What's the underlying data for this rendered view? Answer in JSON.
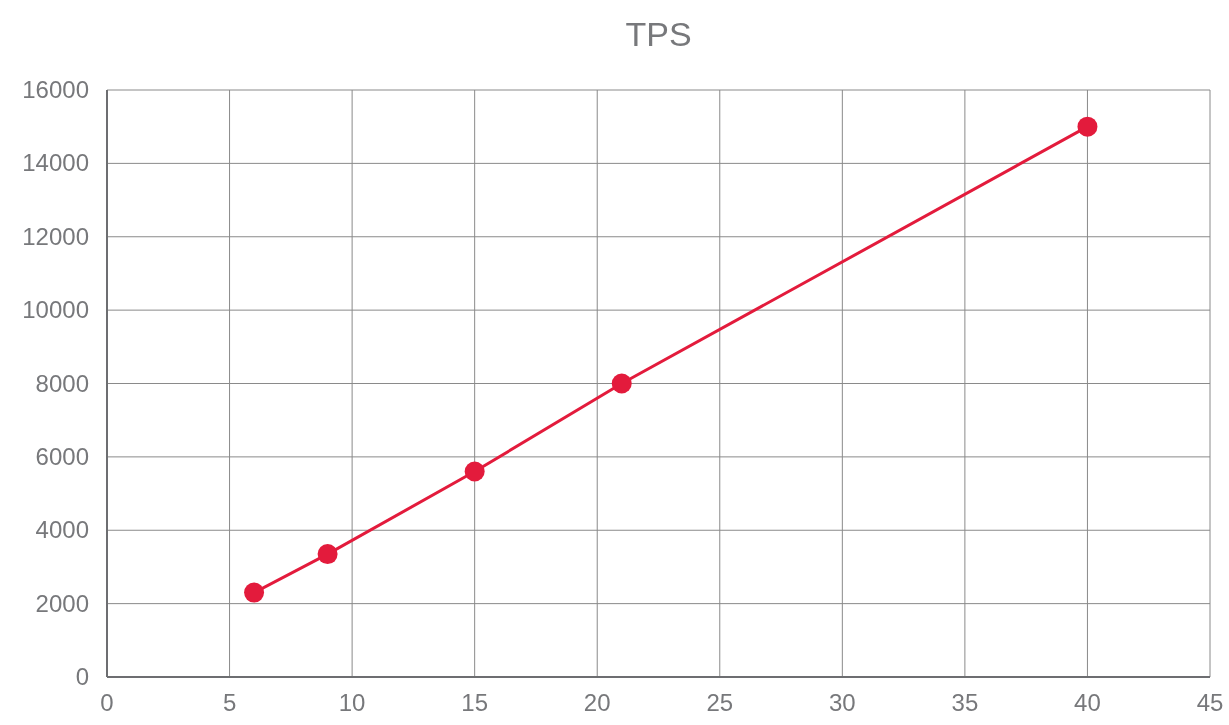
{
  "chart_data": {
    "type": "line",
    "title": "TPS",
    "x": [
      6,
      9,
      15,
      21,
      40
    ],
    "series": [
      {
        "color": "#e31b3c",
        "values": [
          2300,
          3350,
          5600,
          8000,
          15000
        ]
      }
    ],
    "xlim": [
      0,
      45
    ],
    "xticks": [
      0,
      5,
      10,
      15,
      20,
      25,
      30,
      35,
      40,
      45
    ],
    "ylim": [
      0,
      16000
    ],
    "yticks": [
      0,
      2000,
      4000,
      6000,
      8000,
      10000,
      12000,
      14000,
      16000
    ],
    "grid": true,
    "marker": "circle",
    "line_style": "solid"
  }
}
